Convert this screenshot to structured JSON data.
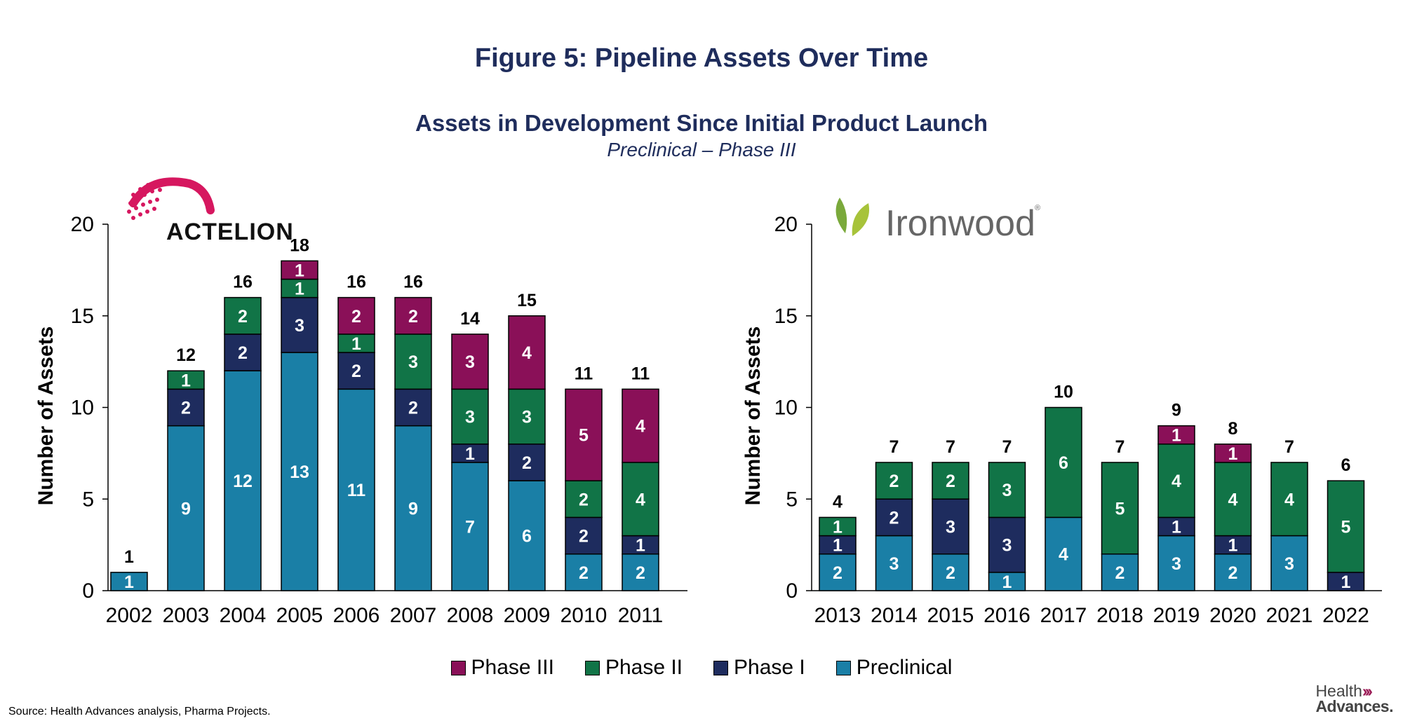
{
  "title": "Figure 5: Pipeline Assets Over Time",
  "subtitle": "Assets in Development Since Initial Product Launch",
  "subtitle2": "Preclinical – Phase III",
  "source": "Source:  Health Advances analysis, Pharma Projects.",
  "logo": {
    "health": "Health",
    "advances": "Advances."
  },
  "colors": {
    "Preclinical": "#1a7fa6",
    "Phase I": "#1e2c5e",
    "Phase II": "#117447",
    "Phase III": "#8a1058"
  },
  "chart_data": [
    {
      "type": "bar",
      "stacked": true,
      "brand": "ACTELION",
      "ylabel": "Number of Assets",
      "ylim": [
        0,
        20
      ],
      "yticks": [
        0,
        5,
        10,
        15,
        20
      ],
      "categories": [
        "2002",
        "2003",
        "2004",
        "2005",
        "2006",
        "2007",
        "2008",
        "2009",
        "2010",
        "2011"
      ],
      "series": [
        {
          "name": "Preclinical",
          "values": [
            1,
            9,
            12,
            13,
            11,
            9,
            7,
            6,
            2,
            2
          ]
        },
        {
          "name": "Phase I",
          "values": [
            0,
            2,
            2,
            3,
            2,
            2,
            1,
            2,
            2,
            1
          ]
        },
        {
          "name": "Phase II",
          "values": [
            0,
            1,
            2,
            1,
            1,
            3,
            3,
            3,
            2,
            4
          ]
        },
        {
          "name": "Phase III",
          "values": [
            0,
            0,
            0,
            1,
            2,
            2,
            3,
            4,
            5,
            4
          ]
        }
      ],
      "totals": [
        1,
        12,
        16,
        18,
        16,
        16,
        14,
        15,
        11,
        11
      ]
    },
    {
      "type": "bar",
      "stacked": true,
      "brand": "Ironwood",
      "ylabel": "Number of Assets",
      "ylim": [
        0,
        20
      ],
      "yticks": [
        0,
        5,
        10,
        15,
        20
      ],
      "categories": [
        "2013",
        "2014",
        "2015",
        "2016",
        "2017",
        "2018",
        "2019",
        "2020",
        "2021",
        "2022"
      ],
      "series": [
        {
          "name": "Preclinical",
          "values": [
            2,
            3,
            2,
            1,
            4,
            2,
            3,
            2,
            3,
            0
          ]
        },
        {
          "name": "Phase I",
          "values": [
            1,
            2,
            3,
            3,
            0,
            0,
            1,
            1,
            0,
            1
          ]
        },
        {
          "name": "Phase II",
          "values": [
            1,
            2,
            2,
            3,
            6,
            5,
            4,
            4,
            4,
            5
          ]
        },
        {
          "name": "Phase III",
          "values": [
            0,
            0,
            0,
            0,
            0,
            0,
            1,
            1,
            0,
            0
          ]
        }
      ],
      "totals": [
        4,
        7,
        7,
        7,
        10,
        7,
        9,
        8,
        7,
        6
      ]
    }
  ],
  "legend": [
    "Phase III",
    "Phase II",
    "Phase I",
    "Preclinical"
  ]
}
